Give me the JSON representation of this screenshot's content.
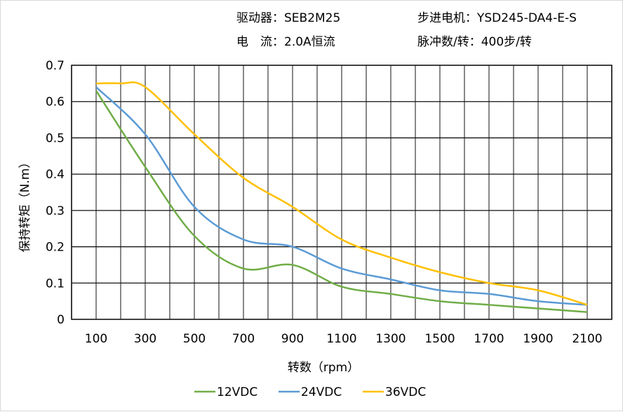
{
  "header": {
    "driver": "驱动器：SEB2M25",
    "motor": "步进电机：YSD245-DA4-E-S",
    "current": "电　流：2.0A恒流",
    "pulses": "脉冲数/转：400步/转"
  },
  "chart_data": {
    "type": "line",
    "xlabel": "转数（rpm）",
    "ylabel": "保持转矩（N.m）",
    "xlim": [
      0,
      2200
    ],
    "ylim": [
      0,
      0.7
    ],
    "xticks": [
      "100",
      "300",
      "500",
      "700",
      "900",
      "1100",
      "1300",
      "1500",
      "1700",
      "1900",
      "2100"
    ],
    "yticks": [
      "0",
      "0.1",
      "0.2",
      "0.3",
      "0.4",
      "0.5",
      "0.6",
      "0.7"
    ],
    "grid": true,
    "legend_placement": "bottom",
    "series": [
      {
        "name": "12VDC",
        "color": "#70ad47",
        "x": [
          100,
          300,
          500,
          700,
          900,
          1100,
          1300,
          1500,
          1700,
          1900,
          2100
        ],
        "y": [
          0.63,
          0.42,
          0.23,
          0.14,
          0.15,
          0.09,
          0.07,
          0.05,
          0.04,
          0.03,
          0.02
        ]
      },
      {
        "name": "24VDC",
        "color": "#5b9bd5",
        "x": [
          100,
          300,
          500,
          700,
          900,
          1100,
          1300,
          1500,
          1700,
          1900,
          2100
        ],
        "y": [
          0.64,
          0.51,
          0.31,
          0.22,
          0.2,
          0.14,
          0.11,
          0.08,
          0.07,
          0.05,
          0.04
        ]
      },
      {
        "name": "36VDC",
        "color": "#ffc000",
        "x": [
          100,
          200,
          300,
          500,
          700,
          900,
          1100,
          1300,
          1500,
          1700,
          1900,
          2100
        ],
        "y": [
          0.65,
          0.65,
          0.64,
          0.51,
          0.39,
          0.31,
          0.22,
          0.17,
          0.13,
          0.1,
          0.08,
          0.04
        ]
      }
    ]
  }
}
